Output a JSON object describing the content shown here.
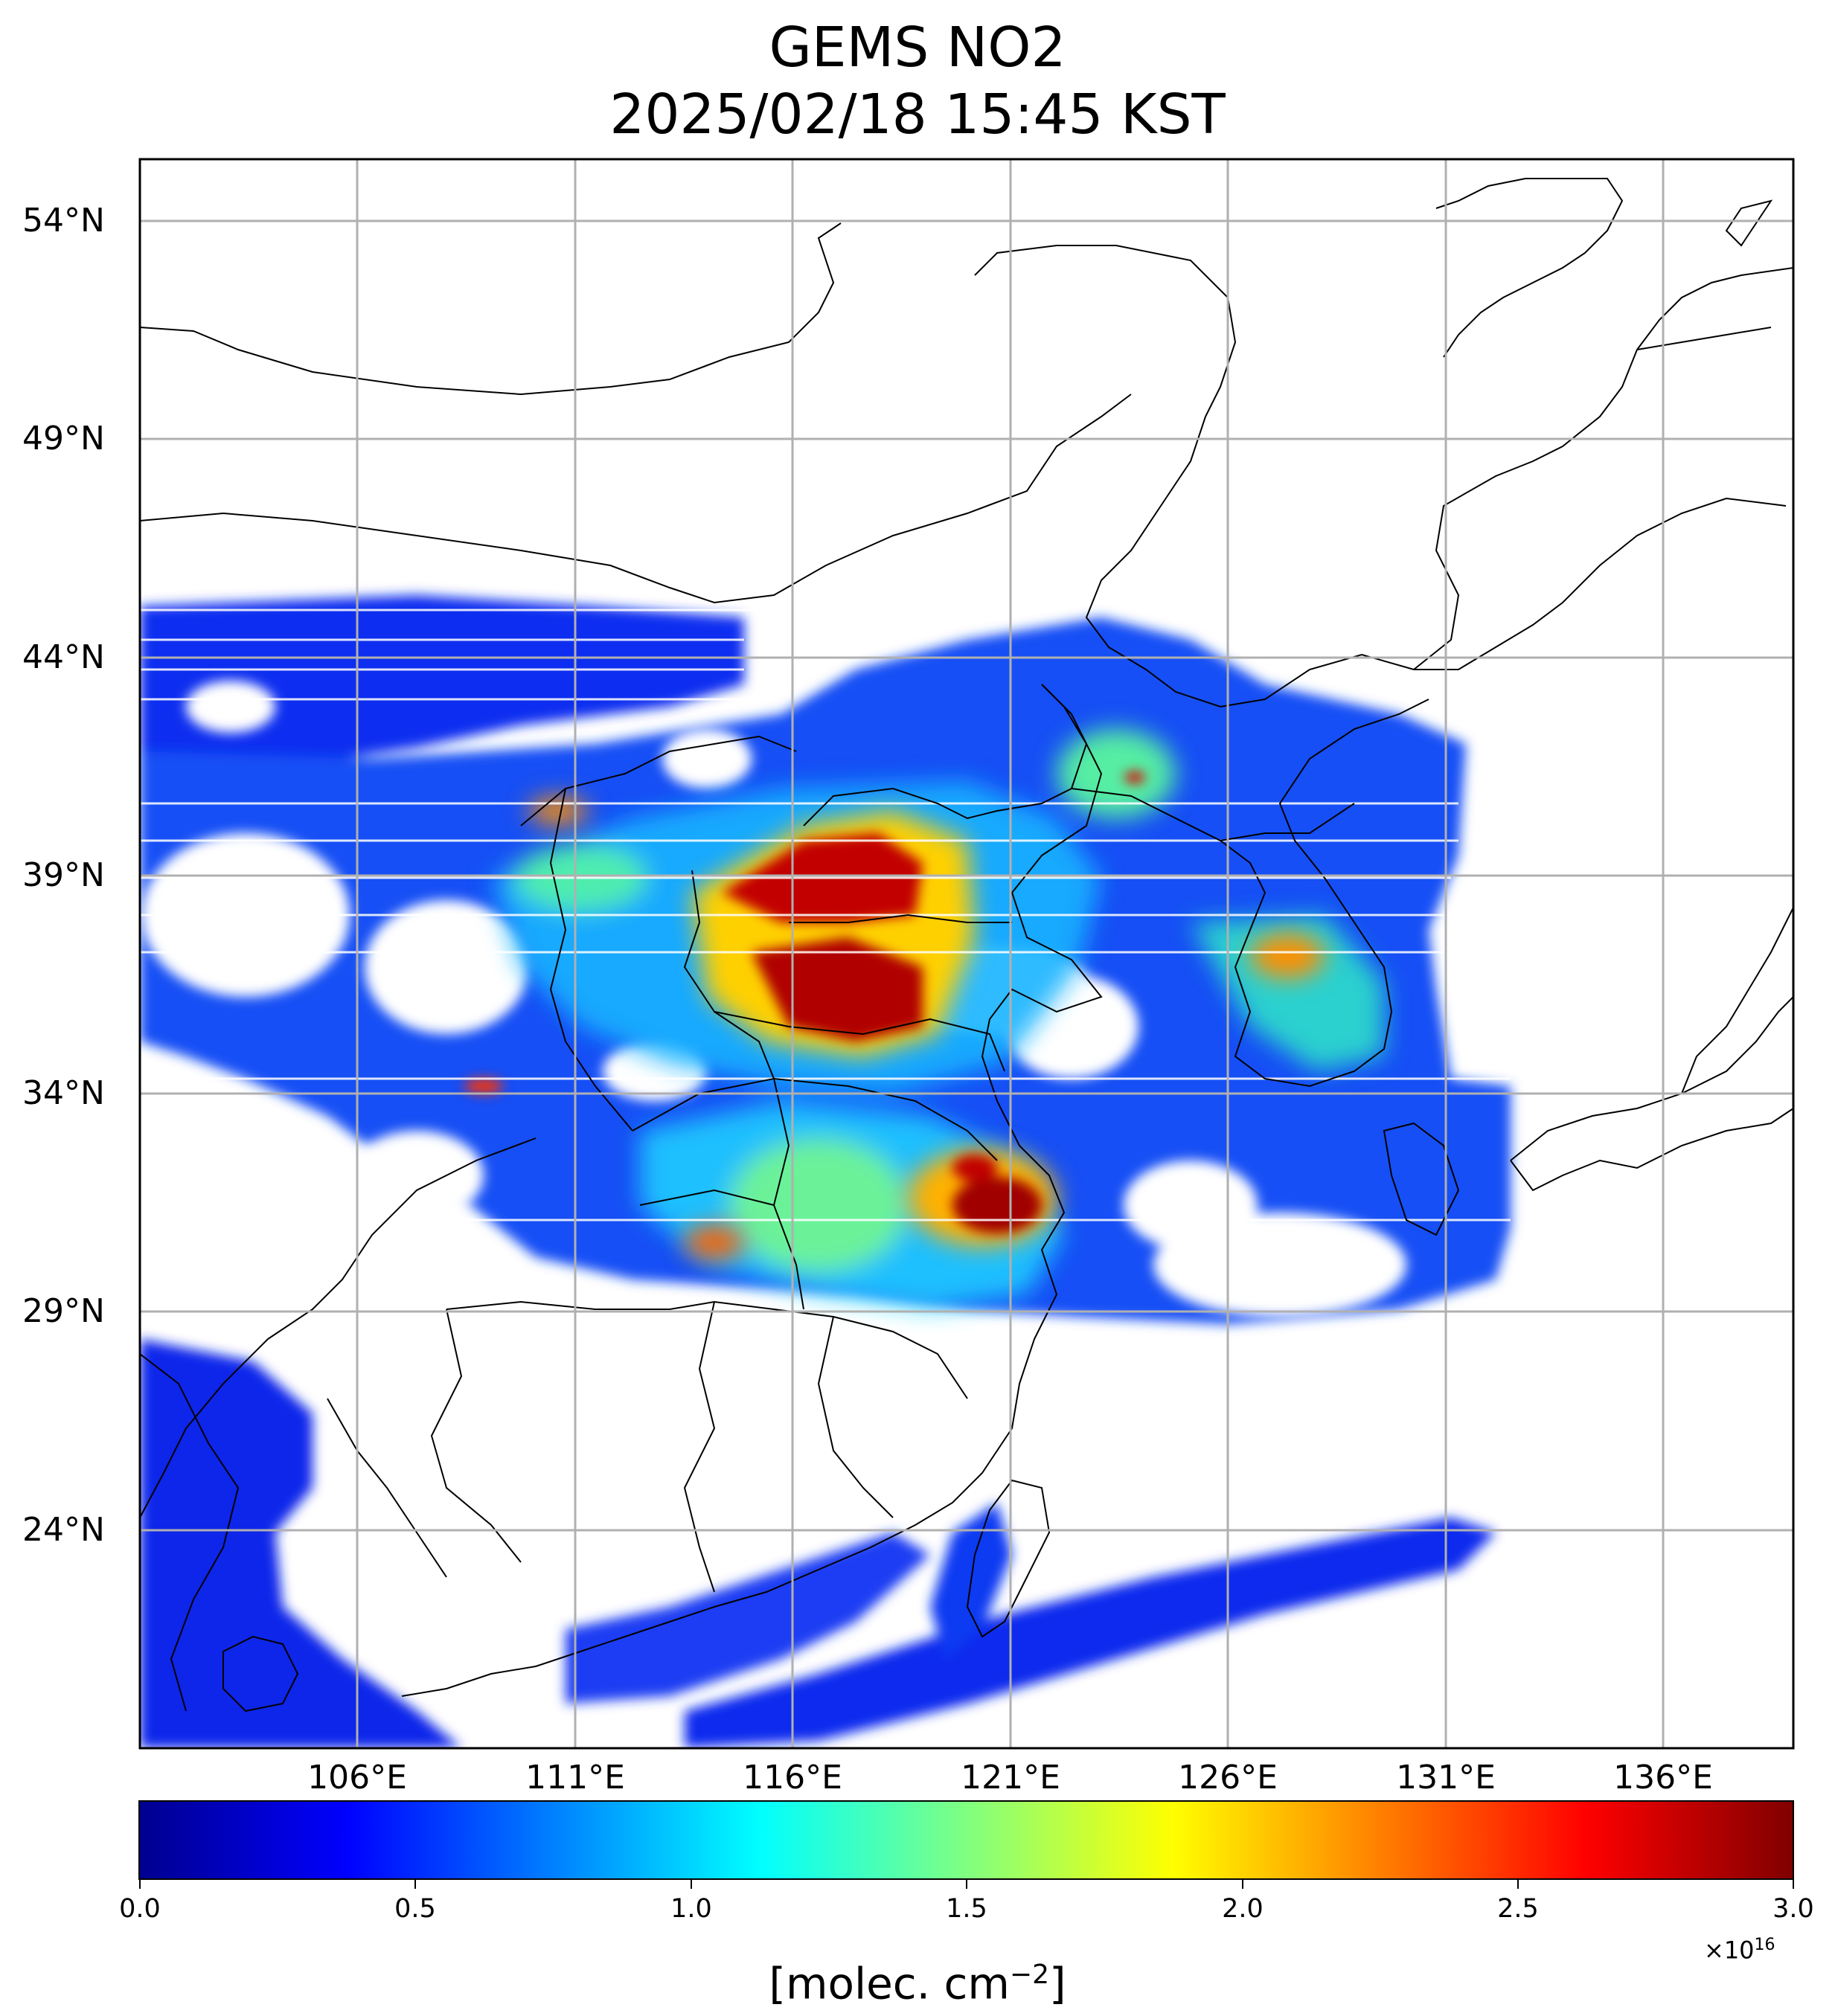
{
  "figure": {
    "title_line1": "GEMS NO2",
    "title_line2": "2025/02/18 15:45 KST"
  },
  "map": {
    "projection": "plate-carree",
    "lon_range": [
      101,
      139
    ],
    "lat_range": [
      19.5,
      56
    ],
    "lat_ticks": [
      {
        "value": 54,
        "label": "54°N"
      },
      {
        "value": 49,
        "label": "49°N"
      },
      {
        "value": 44,
        "label": "44°N"
      },
      {
        "value": 39,
        "label": "39°N"
      },
      {
        "value": 34,
        "label": "34°N"
      },
      {
        "value": 29,
        "label": "29°N"
      },
      {
        "value": 24,
        "label": "24°N"
      }
    ],
    "lon_ticks": [
      {
        "value": 106,
        "label": "106°E"
      },
      {
        "value": 111,
        "label": "111°E"
      },
      {
        "value": 116,
        "label": "116°E"
      },
      {
        "value": 121,
        "label": "121°E"
      },
      {
        "value": 126,
        "label": "126°E"
      },
      {
        "value": 131,
        "label": "131°E"
      },
      {
        "value": 136,
        "label": "136°E"
      }
    ],
    "gridlines": true,
    "boundaries": "coastlines and provincial/national borders",
    "field": "NO2 column (molec. cm-2)"
  },
  "colorbar": {
    "colormap": "jet",
    "colors": [
      "#00008f",
      "#0000ff",
      "#0080ff",
      "#00ffff",
      "#80ff80",
      "#ffff00",
      "#ff8000",
      "#ff0000",
      "#800000"
    ],
    "min": 0.0,
    "max": 3.0,
    "ticks": [
      {
        "value": 0.0,
        "label": "0.0"
      },
      {
        "value": 0.5,
        "label": "0.5"
      },
      {
        "value": 1.0,
        "label": "1.0"
      },
      {
        "value": 1.5,
        "label": "1.5"
      },
      {
        "value": 2.0,
        "label": "2.0"
      },
      {
        "value": 2.5,
        "label": "2.5"
      },
      {
        "value": 3.0,
        "label": "3.0"
      }
    ],
    "multiplier_base": "×10",
    "multiplier_exp": "16",
    "unit_base": "[molec. cm",
    "unit_exp": "−2",
    "unit_close": "]"
  }
}
